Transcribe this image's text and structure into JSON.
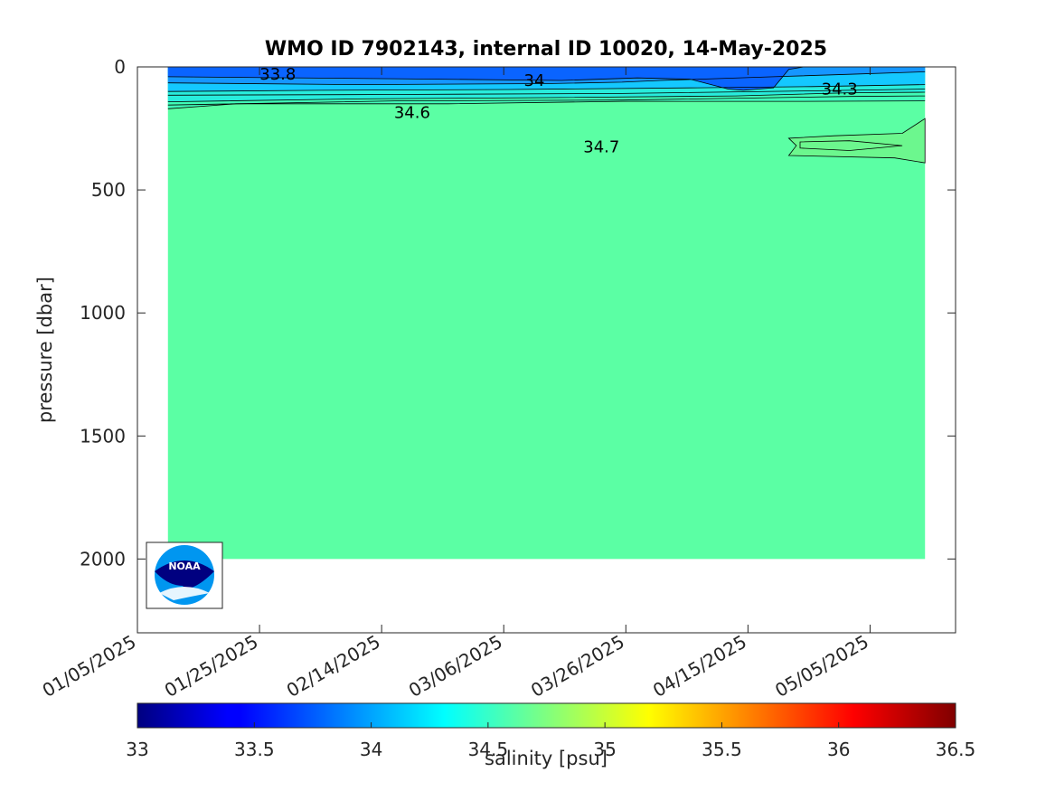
{
  "chart_data": {
    "type": "contour",
    "title": "WMO ID 7902143, internal ID 10020, 14-May-2025",
    "xlabel": "",
    "ylabel": "pressure [dbar]",
    "x_axis": {
      "type": "date",
      "ticks": [
        "01/05/2025",
        "01/25/2025",
        "02/14/2025",
        "03/06/2025",
        "03/26/2025",
        "04/15/2025",
        "05/05/2025"
      ],
      "range": [
        "2025-01-05",
        "2025-05-19"
      ]
    },
    "y_axis": {
      "reversed": true,
      "ticks": [
        0,
        500,
        1000,
        1500,
        2000
      ],
      "range": [
        0,
        2300
      ]
    },
    "data_extent": {
      "x": [
        "2025-01-10",
        "2025-05-14"
      ],
      "pressure": [
        0,
        2000
      ]
    },
    "contour_levels": [
      33.8,
      34,
      34.3,
      34.6,
      34.7
    ],
    "contour_labels": [
      {
        "text": "33.8",
        "date": "2025-01-28",
        "pressure": 30
      },
      {
        "text": "34",
        "date": "2025-03-11",
        "pressure": 55
      },
      {
        "text": "34.3",
        "date": "2025-04-30",
        "pressure": 90
      },
      {
        "text": "34.6",
        "date": "2025-02-19",
        "pressure": 185
      },
      {
        "text": "34.7",
        "date": "2025-03-22",
        "pressure": 325
      }
    ],
    "deep_value": 34.7,
    "colorbar": {
      "label": "salinity [psu]",
      "range": [
        33,
        36.5
      ],
      "ticks": [
        "33",
        "33.5",
        "34",
        "34.5",
        "35",
        "35.5",
        "36",
        "36.5"
      ],
      "colormap": "jet"
    },
    "grid": false,
    "logo": "noaa-logo"
  },
  "colors": {
    "deep_water": "#5bffa4",
    "band_1": "#0a64ff",
    "band_2": "#1696ff",
    "band_3": "#14c8ff",
    "band_4": "#28ecdc",
    "band_5": "#40fcb8",
    "patch": "#6cf78e",
    "noaa_dark": "#000080",
    "noaa_light": "#0096f0"
  }
}
